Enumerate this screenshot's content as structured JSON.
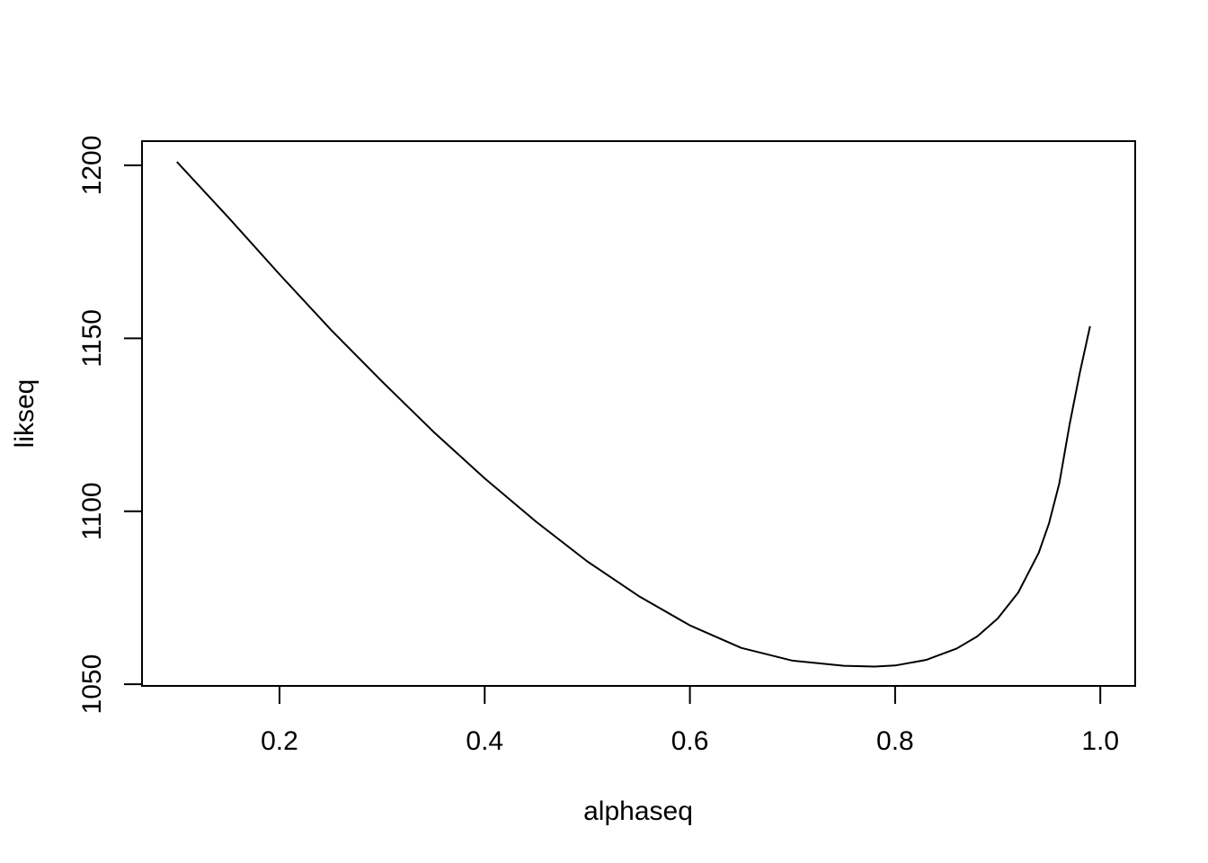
{
  "chart_data": {
    "type": "line",
    "title": "",
    "xlabel": "alphaseq",
    "ylabel": "likseq",
    "xlim": [
      0.066,
      1.034
    ],
    "ylim": [
      1049.5,
      1207
    ],
    "xticks": [
      0.2,
      0.4,
      0.6,
      0.8,
      1.0
    ],
    "xtick_labels": [
      "0.2",
      "0.4",
      "0.6",
      "0.8",
      "1.0"
    ],
    "yticks": [
      1050,
      1100,
      1150,
      1200
    ],
    "ytick_labels": [
      "1050",
      "1100",
      "1150",
      "1200"
    ],
    "grid": false,
    "legend": "none",
    "series": [
      {
        "color": "#000000",
        "x": [
          0.1,
          0.15,
          0.2,
          0.25,
          0.3,
          0.35,
          0.4,
          0.45,
          0.5,
          0.55,
          0.6,
          0.65,
          0.7,
          0.75,
          0.78,
          0.8,
          0.83,
          0.86,
          0.88,
          0.9,
          0.92,
          0.94,
          0.95,
          0.96,
          0.97,
          0.98,
          0.99
        ],
        "y": [
          1201,
          1185,
          1168.5,
          1152.5,
          1137.5,
          1123,
          1109.5,
          1097,
          1085.5,
          1075.5,
          1067,
          1060.5,
          1056.8,
          1055.3,
          1055.1,
          1055.4,
          1057.0,
          1060.3,
          1063.8,
          1069.0,
          1076.5,
          1088.0,
          1096.5,
          1108.0,
          1125.0,
          1140.0,
          1153.5
        ]
      }
    ]
  }
}
